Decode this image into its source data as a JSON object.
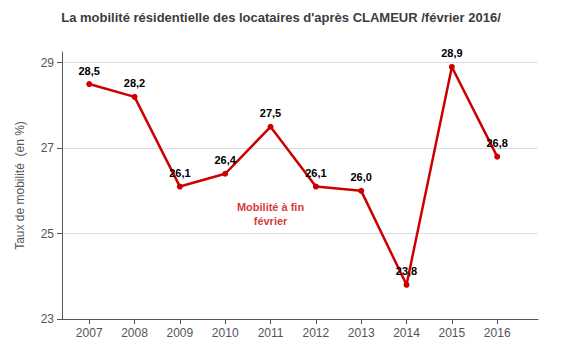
{
  "chart_data": {
    "type": "line",
    "title": "La mobilité résidentielle des locataires d'après CLAMEUR /février 2016/",
    "ylabel": "Taux de mobilité  (en %)",
    "x": [
      2007,
      2008,
      2009,
      2010,
      2011,
      2012,
      2013,
      2014,
      2015,
      2016
    ],
    "values": [
      28.5,
      28.2,
      26.1,
      26.4,
      27.5,
      26.1,
      26.0,
      23.8,
      28.9,
      26.8
    ],
    "value_labels": [
      "28,5",
      "28,2",
      "26,1",
      "26,4",
      "27,5",
      "26,1",
      "26,0",
      "23,8",
      "28,9",
      "26,8"
    ],
    "color": "#cc0000",
    "marker": "circle",
    "xlim": [
      2006.4,
      2016.9
    ],
    "xticks": [
      2007,
      2008,
      2009,
      2010,
      2011,
      2012,
      2013,
      2014,
      2015,
      2016
    ],
    "ylim": [
      23,
      29.25
    ],
    "yticks": [
      23,
      25,
      27,
      29
    ],
    "grid": true,
    "data_labels": true,
    "annotations": [
      {
        "text": "Mobilité à fin\nfévrier",
        "x": 2011.0,
        "y": 25.45
      }
    ]
  }
}
